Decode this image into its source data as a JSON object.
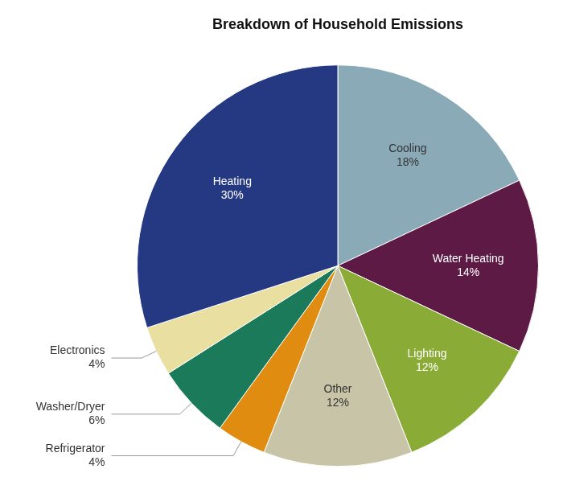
{
  "chart_data": {
    "type": "pie",
    "title": "Breakdown of Household Emissions",
    "categories": [
      "Cooling",
      "Water Heating",
      "Lighting",
      "Other",
      "Refrigerator",
      "Washer/Dryer",
      "Electronics",
      "Heating"
    ],
    "values": [
      18,
      14,
      12,
      12,
      4,
      6,
      4,
      30
    ],
    "value_labels": [
      "18%",
      "14%",
      "12%",
      "12%",
      "4%",
      "6%",
      "4%",
      "30%"
    ],
    "colors": [
      "#8aaab8",
      "#5c1a44",
      "#8aac36",
      "#c8c4a8",
      "#e08c10",
      "#1a7a5a",
      "#e8dfa0",
      "#253882"
    ],
    "data_labels": true
  }
}
